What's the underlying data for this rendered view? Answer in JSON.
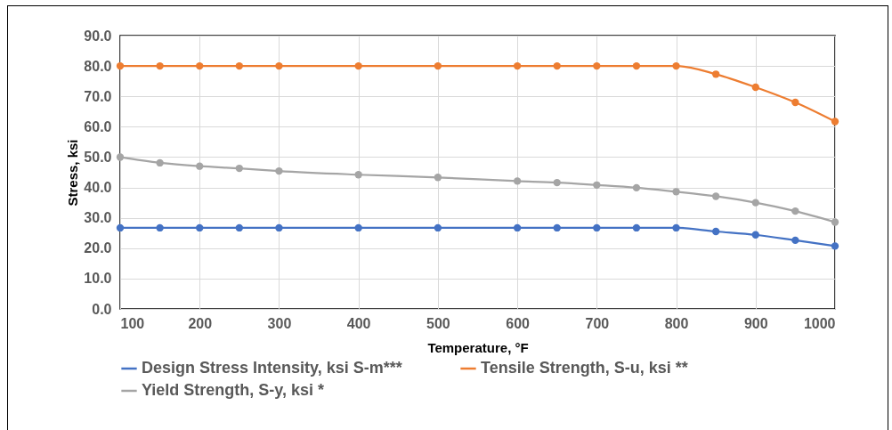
{
  "chart_data": {
    "type": "line",
    "xlabel": "Temperature, °F",
    "ylabel": "Stress, ksi",
    "x": [
      100,
      150,
      200,
      250,
      300,
      400,
      500,
      600,
      650,
      700,
      750,
      800,
      850,
      900,
      950,
      1000
    ],
    "series": [
      {
        "name": "Design Stress Intensity, ksi S-m***",
        "color": "#4472c4",
        "values": [
          26.7,
          26.7,
          26.7,
          26.7,
          26.7,
          26.7,
          26.7,
          26.7,
          26.7,
          26.7,
          26.7,
          26.7,
          25.5,
          24.4,
          22.6,
          20.7
        ]
      },
      {
        "name": "Tensile Strength, S-u, ksi **",
        "color": "#ed7d31",
        "values": [
          80,
          80,
          80,
          80,
          80,
          80,
          80,
          80,
          80,
          80,
          80,
          80,
          77.3,
          73.0,
          68.0,
          61.7
        ]
      },
      {
        "name": "Yield Strength, S-y, ksi *",
        "color": "#a5a5a5",
        "values": [
          50.0,
          48.1,
          47.0,
          46.3,
          45.4,
          44.2,
          43.3,
          42.1,
          41.6,
          40.8,
          39.9,
          38.6,
          37.1,
          35.0,
          32.2,
          28.6
        ]
      }
    ],
    "xlim": [
      100,
      1000
    ],
    "xticks": [
      100,
      200,
      300,
      400,
      500,
      600,
      700,
      800,
      900,
      1000
    ],
    "ylim": [
      0,
      90
    ],
    "yticks": [
      {
        "value": 0,
        "label": "0.0"
      },
      {
        "value": 10,
        "label": "10.0"
      },
      {
        "value": 20,
        "label": "20.0"
      },
      {
        "value": 30,
        "label": "30.0"
      },
      {
        "value": 40,
        "label": "40.0"
      },
      {
        "value": 50,
        "label": "50.0"
      },
      {
        "value": 60,
        "label": "60.0"
      },
      {
        "value": 70,
        "label": "70.0"
      },
      {
        "value": 80,
        "label": "80.0"
      },
      {
        "value": 90,
        "label": "90.0"
      }
    ],
    "grid": true,
    "legend": "bottom",
    "marker": "circle",
    "line_style": "solid"
  }
}
